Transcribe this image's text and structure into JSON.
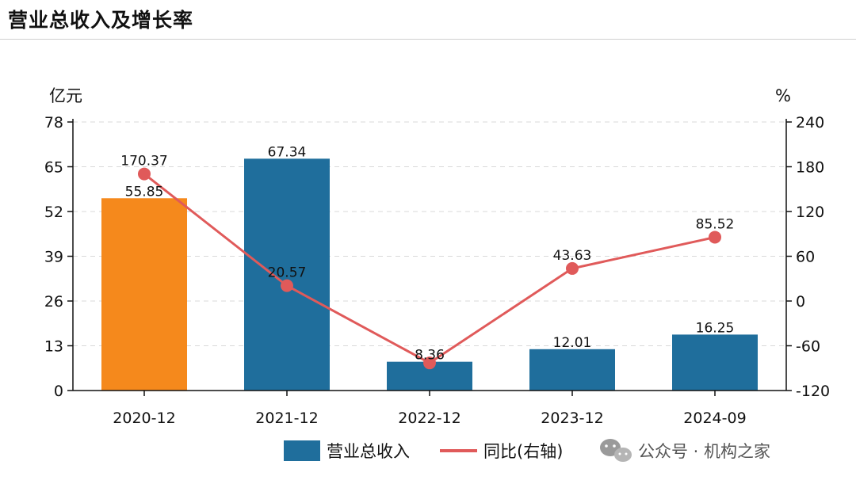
{
  "header": {
    "title": "营业总收入及增长率"
  },
  "watermark": {
    "text": "公众号 · 机构之家",
    "icon": "wechat-icon"
  },
  "chart_data": {
    "type": "bar",
    "categories": [
      "2020-12",
      "2021-12",
      "2022-12",
      "2023-12",
      "2024-09"
    ],
    "series": [
      {
        "name": "营业总收入",
        "kind": "bar",
        "axis": "left",
        "values": [
          55.85,
          67.34,
          8.36,
          12.01,
          16.25
        ],
        "labels": [
          "55.85",
          "67.34",
          "8.36",
          "12.01",
          "16.25"
        ],
        "color": "#1f6e9c",
        "highlight_color": "#f5891c",
        "highlight_index": 0
      },
      {
        "name": "同比(右轴)",
        "kind": "line",
        "axis": "right",
        "values": [
          170.37,
          20.57,
          -83.0,
          43.63,
          85.52
        ],
        "labels": [
          "170.37",
          "20.57",
          "",
          "43.63",
          "85.52"
        ],
        "color": "#e05a5a"
      }
    ],
    "left_axis": {
      "unit": "亿元",
      "ylim": [
        0,
        78
      ],
      "ticks": [
        "0",
        "13",
        "26",
        "39",
        "52",
        "65",
        "78"
      ]
    },
    "right_axis": {
      "unit": "%",
      "ylim": [
        -120,
        240
      ],
      "ticks": [
        "-120",
        "-60",
        "0",
        "60",
        "120",
        "180",
        "240"
      ]
    },
    "grid": "horizontal dashed",
    "legend": "bottom-center"
  }
}
